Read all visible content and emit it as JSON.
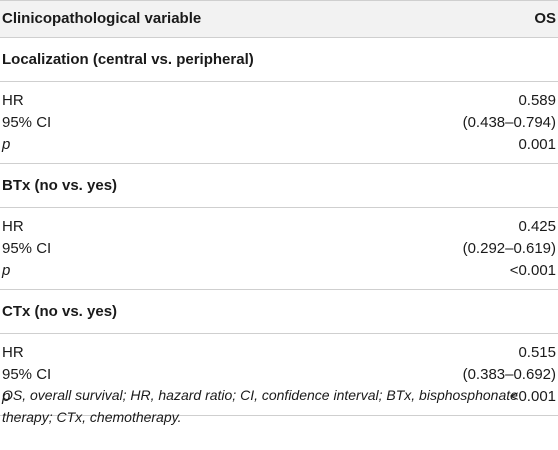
{
  "header": {
    "col1": "Clinicopathological variable",
    "col2": "OS"
  },
  "sections": [
    {
      "title": "Localization (central vs. peripheral)",
      "rows": [
        {
          "label": "HR",
          "value": "0.589"
        },
        {
          "label": "95% CI",
          "value": "(0.438–0.794)"
        },
        {
          "label": "p",
          "value": "0.001"
        }
      ]
    },
    {
      "title": "BTx (no vs. yes)",
      "rows": [
        {
          "label": "HR",
          "value": "0.425"
        },
        {
          "label": "95% CI",
          "value": "(0.292–0.619)"
        },
        {
          "label": "p",
          "value": "<0.001"
        }
      ]
    },
    {
      "title": "CTx (no vs. yes)",
      "rows": [
        {
          "label": "HR",
          "value": "0.515"
        },
        {
          "label": "95% CI",
          "value": "(0.383–0.692)"
        },
        {
          "label": "p",
          "value": "<0.001"
        }
      ]
    }
  ],
  "footnote": "OS, overall survival; HR, hazard ratio; CI, confidence interval; BTx, bisphosphonate therapy; CTx, chemotherapy."
}
